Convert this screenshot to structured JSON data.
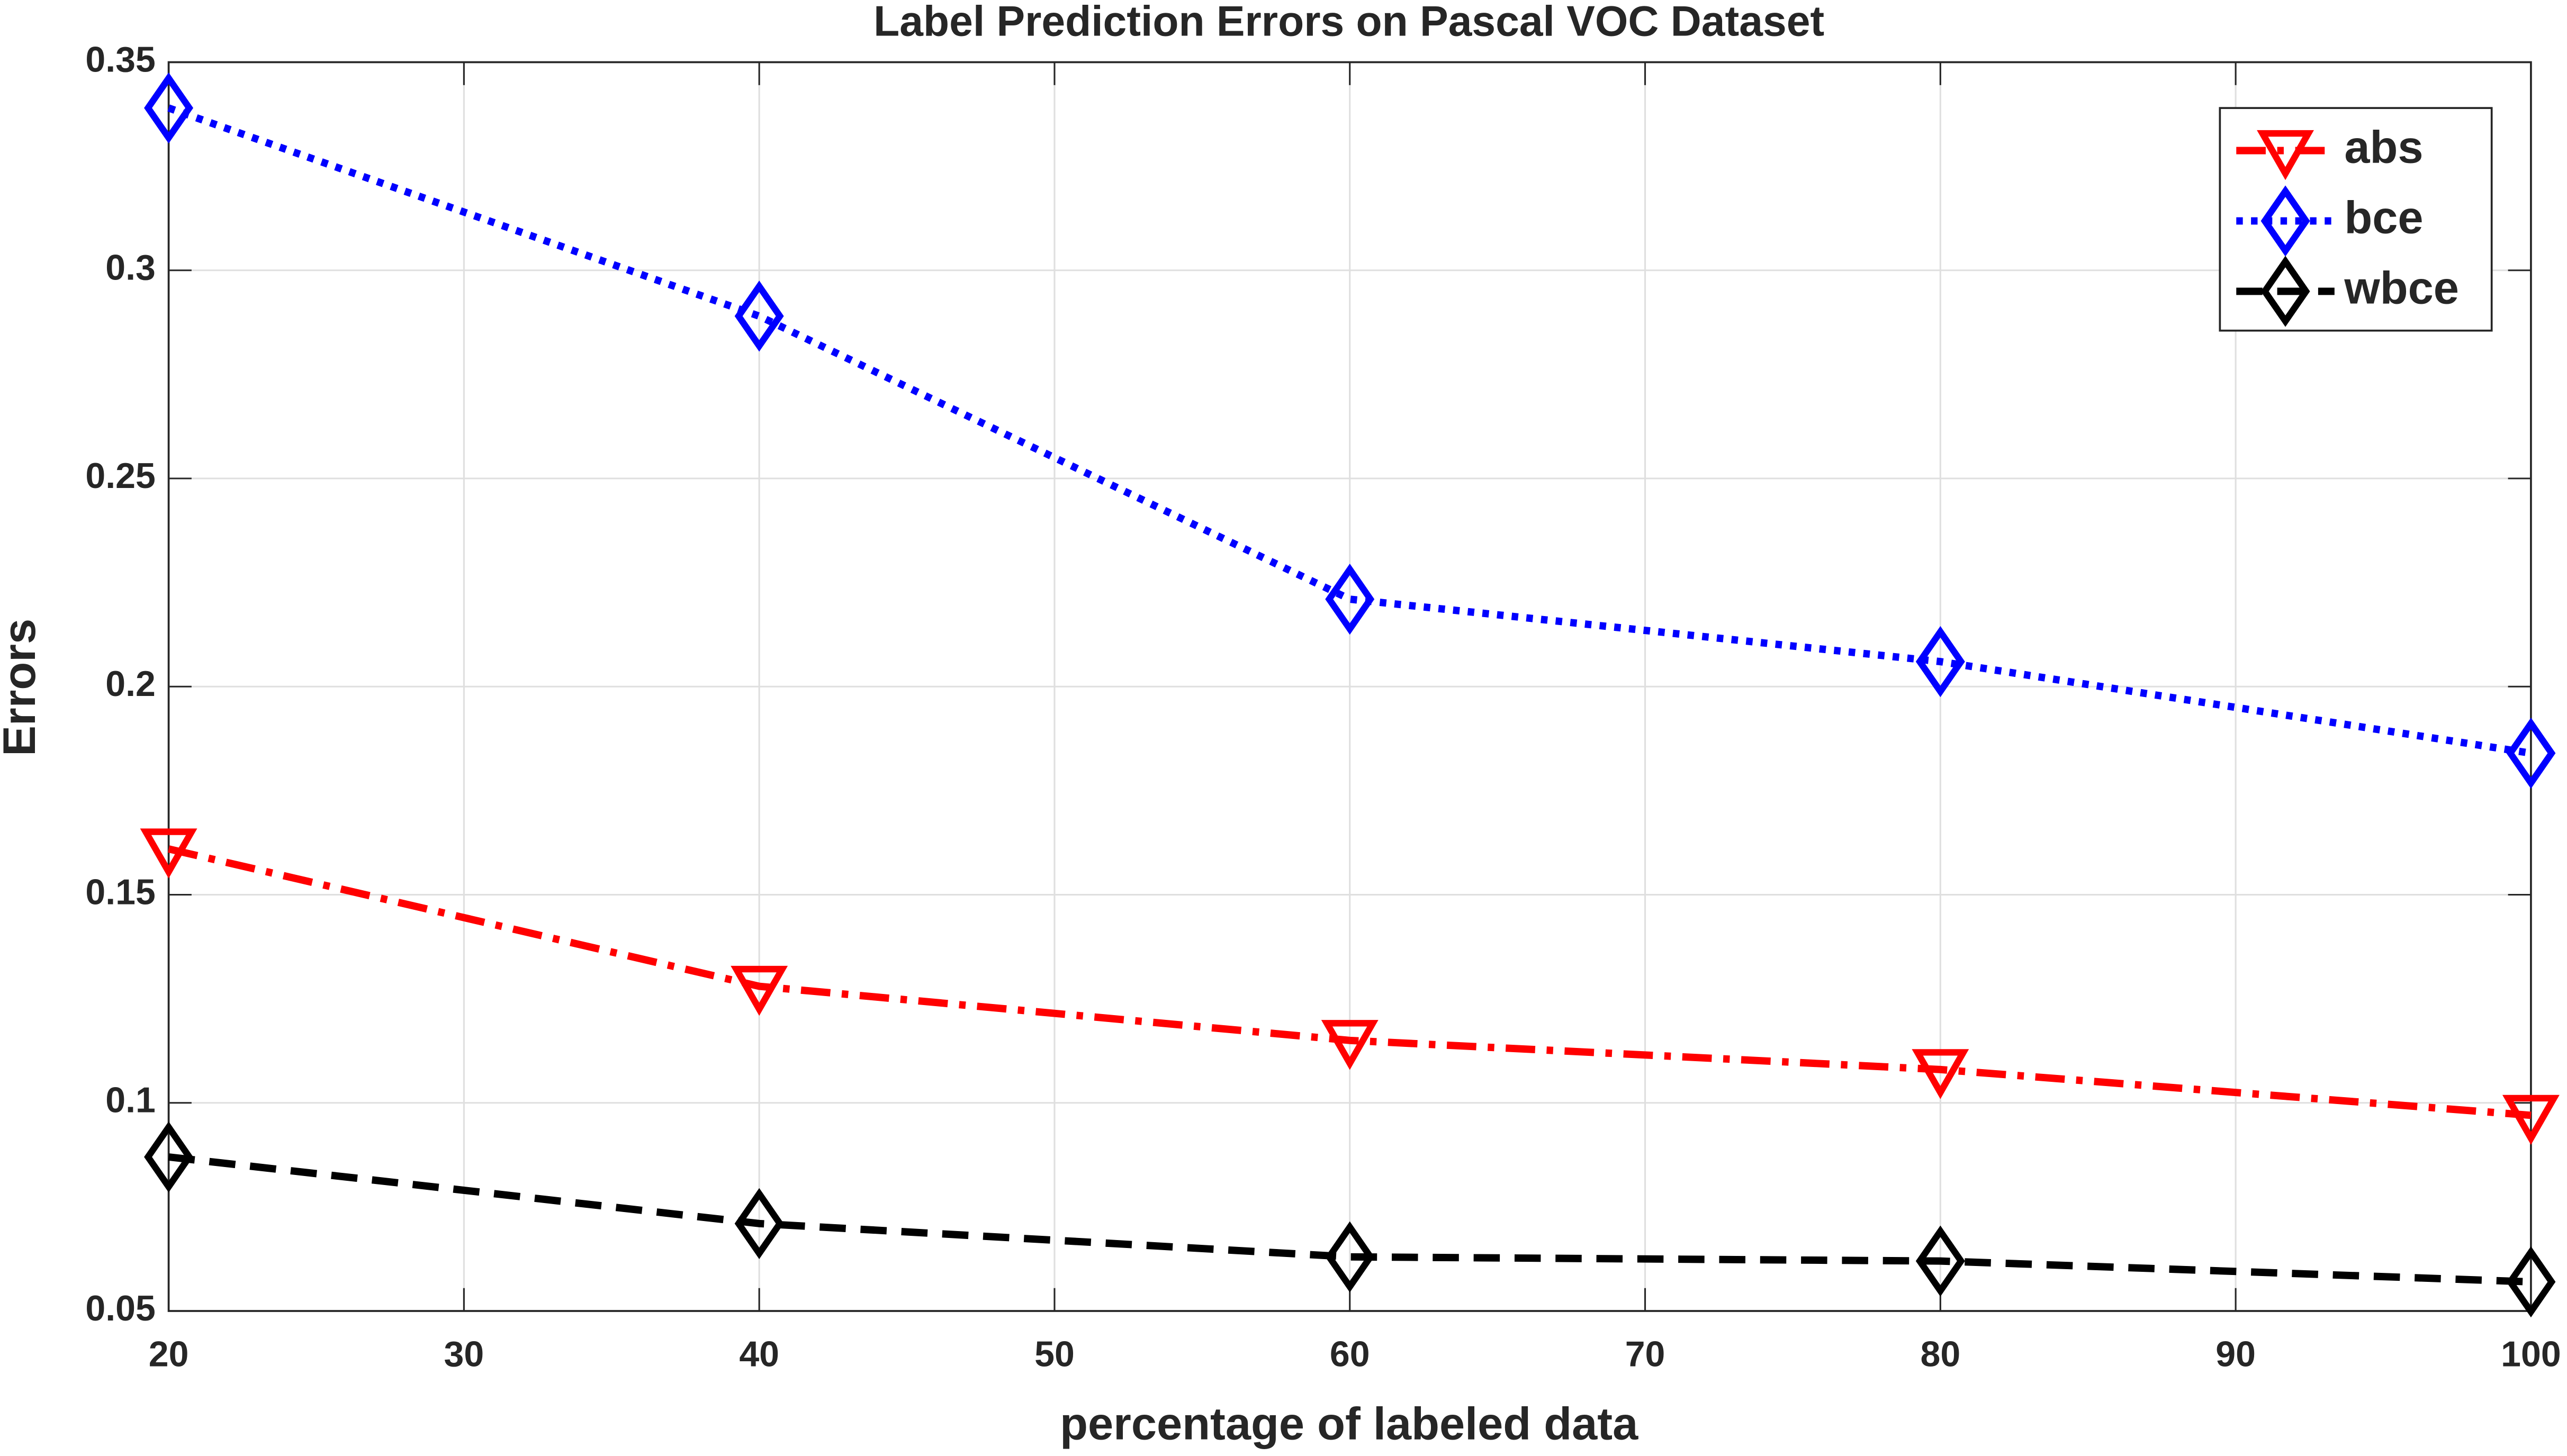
{
  "chart_data": {
    "type": "line",
    "title": "Label Prediction Errors on Pascal VOC Dataset",
    "x_label": "percentage of labeled data",
    "y_label": "Errors",
    "x": [
      20,
      40,
      60,
      80,
      100
    ],
    "series": [
      {
        "name": "abs",
        "color": "#ff0000",
        "marker": "triangle-down",
        "linestyle": "dashdot",
        "values": [
          0.161,
          0.128,
          0.115,
          0.108,
          0.097
        ]
      },
      {
        "name": "bce",
        "color": "#0000ff",
        "marker": "diamond",
        "linestyle": "dotted",
        "values": [
          0.339,
          0.289,
          0.221,
          0.206,
          0.184
        ]
      },
      {
        "name": "wbce",
        "color": "#000000",
        "marker": "diamond",
        "linestyle": "dashed",
        "values": [
          0.087,
          0.071,
          0.063,
          0.062,
          0.057
        ]
      }
    ],
    "xlim": [
      20,
      100
    ],
    "xticks": [
      20,
      30,
      40,
      50,
      60,
      70,
      80,
      90,
      100
    ],
    "ylim": [
      0.05,
      0.35
    ],
    "yticks": [
      0.05,
      0.1,
      0.15,
      0.2,
      0.25,
      0.3,
      0.35
    ],
    "grid": true,
    "legend": "top-right"
  }
}
